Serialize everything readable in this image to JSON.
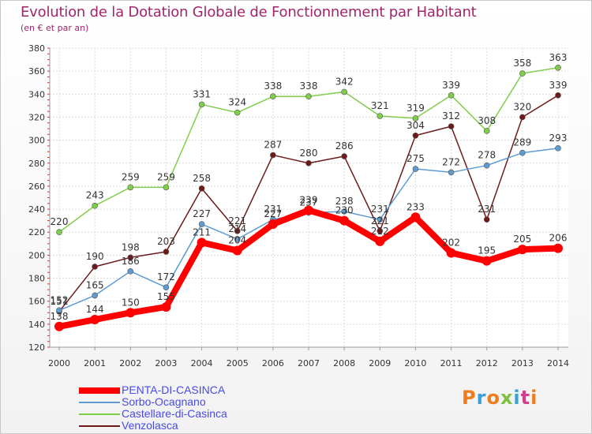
{
  "header": {
    "title": "Evolution de la Dotation Globale de Fonctionnement par Habitant",
    "subtitle": "(en € et par an)"
  },
  "chart_data": {
    "type": "line",
    "x": [
      "2000",
      "2001",
      "2002",
      "2003",
      "2004",
      "2005",
      "2006",
      "2007",
      "2008",
      "2009",
      "2010",
      "2011",
      "2012",
      "2013",
      "2014"
    ],
    "ylim": [
      120,
      380
    ],
    "yticks": [
      120,
      140,
      160,
      180,
      200,
      220,
      240,
      260,
      280,
      300,
      320,
      340,
      360,
      380
    ],
    "grid": true,
    "legend_position": "bottom-left",
    "series": [
      {
        "name": "PENTA-DI-CASINCA",
        "color": "#ff0000",
        "values": [
          138,
          144,
          150,
          155,
          211,
          204,
          227,
          239,
          230,
          212,
          233,
          202,
          195,
          205,
          206
        ]
      },
      {
        "name": "Sorbo-Ocagnano",
        "color": "#5d9bd1",
        "values": [
          152,
          165,
          186,
          172,
          227,
          214,
          231,
          237,
          238,
          231,
          275,
          272,
          278,
          289,
          293
        ]
      },
      {
        "name": "Castellare-di-Casinca",
        "color": "#7fce4a",
        "values": [
          220,
          243,
          259,
          259,
          331,
          324,
          338,
          338,
          342,
          321,
          319,
          339,
          308,
          358,
          363
        ]
      },
      {
        "name": "Venzolasca",
        "color": "#6e1a1a",
        "values": [
          151,
          190,
          198,
          203,
          258,
          221,
          287,
          280,
          286,
          221,
          304,
          312,
          231,
          320,
          339
        ]
      }
    ]
  },
  "logo": {
    "text": "Proxiti"
  }
}
